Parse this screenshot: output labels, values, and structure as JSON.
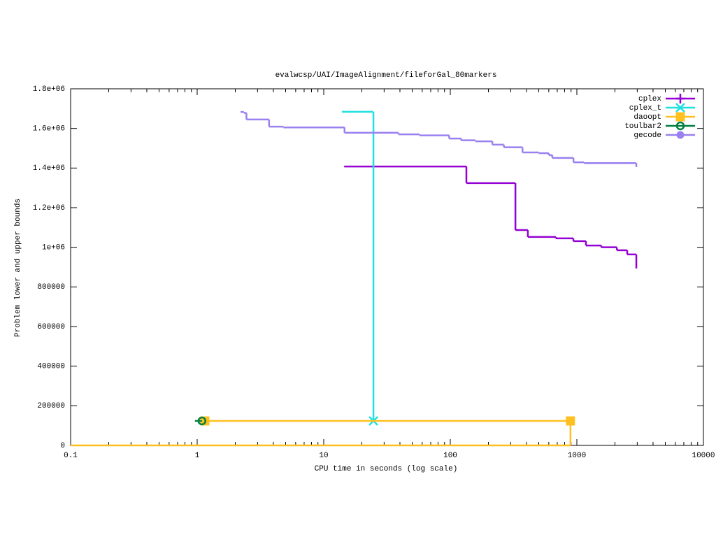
{
  "chart_data": {
    "type": "line",
    "title": "evalwcsp/UAI/ImageAlignment/fileforGal_80markers",
    "x_label": "CPU time in seconds (log scale)",
    "y_label": "Problem lower and upper bounds",
    "x_log": true,
    "steps": true,
    "legend": "top-right",
    "xlim": [
      0.1,
      10000
    ],
    "xticks": [
      0.1,
      1,
      10,
      100,
      1000,
      10000
    ],
    "ylim": [
      0,
      1800000
    ],
    "yticks": [
      0,
      200000,
      400000,
      600000,
      800000,
      {
        "value": 1000000,
        "label": "1e+06"
      },
      {
        "value": 1200000,
        "label": "1.2e+06"
      },
      {
        "value": 1400000,
        "label": "1.4e+06"
      },
      {
        "value": 1600000,
        "label": "1.6e+06"
      },
      {
        "value": 1800000,
        "label": "1.8e+06"
      }
    ],
    "series": [
      {
        "name": "cplex",
        "color": "#9400d3",
        "marker": "plus",
        "x": [
          14.5,
          134,
          327,
          410,
          682,
          938,
          1180,
          1560,
          2070,
          2500,
          2950
        ],
        "values": [
          1408000,
          1324000,
          1087000,
          1052000,
          1045000,
          1031000,
          1009000,
          1000000,
          985000,
          964000,
          893000
        ]
      },
      {
        "name": "cplex_t",
        "color": "#20e0e0",
        "marker": "cross",
        "x": [
          13.9,
          24.7
        ],
        "values": [
          1684000,
          123500
        ]
      },
      {
        "name": "daoopt",
        "color": "#ffc020",
        "marker": "square",
        "x": [
          1.15,
          890,
          null,
          0.1,
          890
        ],
        "values": [
          123500,
          0,
          null,
          0,
          0
        ]
      },
      {
        "name": "toulbar2",
        "color": "#008040",
        "marker": "circle",
        "x": [
          0.96,
          1.09
        ],
        "values": [
          123500,
          123500
        ]
      },
      {
        "name": "gecode",
        "color": "#9a80f0",
        "marker": "dot",
        "x": [
          2.2,
          2.34,
          2.45,
          3.7,
          4.8,
          14.6,
          39,
          57,
          98,
          122,
          158,
          215,
          265,
          372,
          500,
          600,
          640,
          940,
          1140,
          2950
        ],
        "values": [
          1683000,
          1678000,
          1645000,
          1609000,
          1605000,
          1578000,
          1570000,
          1565000,
          1549000,
          1540000,
          1535000,
          1518000,
          1505000,
          1479000,
          1475000,
          1465000,
          1451000,
          1429000,
          1425000,
          1405000
        ]
      }
    ]
  }
}
